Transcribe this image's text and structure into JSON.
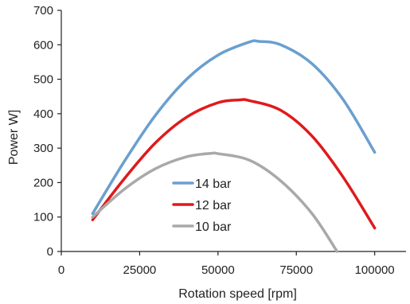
{
  "chart_data": {
    "type": "line",
    "title": "",
    "xlabel": "Rotation speed [rpm]",
    "ylabel": "Power W]",
    "xlim": [
      0,
      110000
    ],
    "ylim": [
      0,
      700
    ],
    "xticks": [
      0,
      25000,
      50000,
      75000,
      100000
    ],
    "yticks": [
      0,
      100,
      200,
      300,
      400,
      500,
      600,
      700
    ],
    "grid": false,
    "legend_position": "center",
    "series": [
      {
        "name": "14 bar",
        "color": "#6a9fcf",
        "x": [
          10000,
          20000,
          30000,
          40000,
          50000,
          60000,
          63000,
          70000,
          80000,
          90000,
          100000
        ],
        "y": [
          110,
          260,
          395,
          500,
          570,
          608,
          610,
          600,
          545,
          440,
          288
        ]
      },
      {
        "name": "12 bar",
        "color": "#e0191b",
        "x": [
          10000,
          20000,
          30000,
          40000,
          50000,
          57000,
          60000,
          70000,
          80000,
          90000,
          100000
        ],
        "y": [
          92,
          210,
          315,
          390,
          432,
          440,
          438,
          410,
          335,
          215,
          68
        ]
      },
      {
        "name": "10 bar",
        "color": "#a9a9a9",
        "x": [
          10000,
          20000,
          30000,
          40000,
          48000,
          50000,
          60000,
          70000,
          80000,
          88000
        ],
        "y": [
          100,
          180,
          240,
          275,
          285,
          284,
          265,
          205,
          110,
          0
        ]
      }
    ]
  }
}
